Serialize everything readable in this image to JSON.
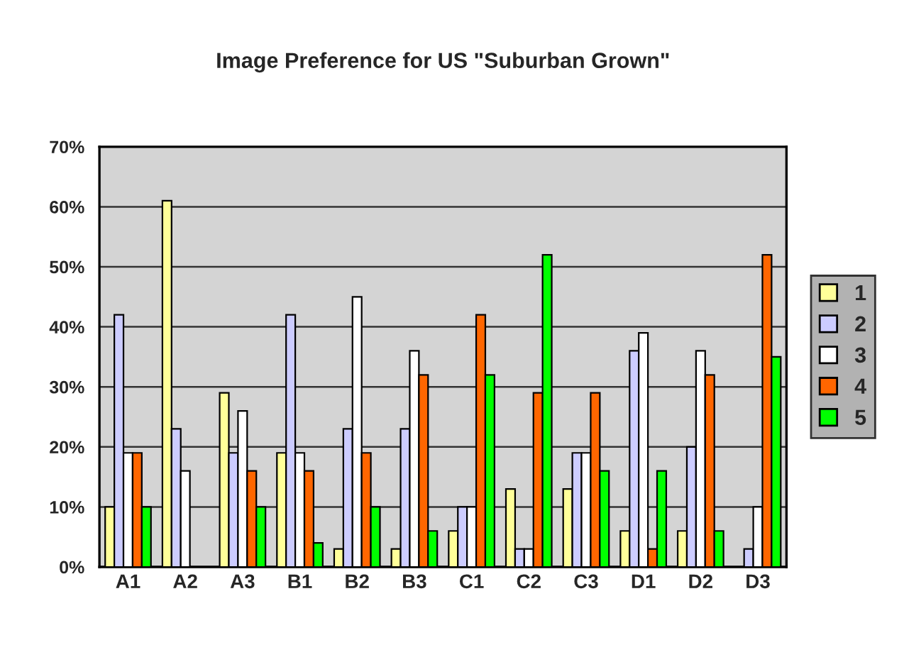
{
  "chart_data": {
    "type": "bar",
    "title": "Image Preference for US \"Suburban Grown\"",
    "categories": [
      "A1",
      "A2",
      "A3",
      "B1",
      "B2",
      "B3",
      "C1",
      "C2",
      "C3",
      "D1",
      "D2",
      "D3"
    ],
    "series": [
      {
        "name": "1",
        "color": "#ffff99",
        "values": [
          10,
          61,
          29,
          19,
          3,
          3,
          6,
          13,
          13,
          6,
          6,
          0
        ]
      },
      {
        "name": "2",
        "color": "#ccccff",
        "values": [
          42,
          23,
          19,
          42,
          23,
          23,
          10,
          3,
          19,
          36,
          20,
          3
        ]
      },
      {
        "name": "3",
        "color": "#ffffff",
        "values": [
          19,
          16,
          26,
          19,
          45,
          36,
          10,
          3,
          19,
          39,
          36,
          10
        ]
      },
      {
        "name": "4",
        "color": "#ff6600",
        "values": [
          19,
          0,
          16,
          16,
          19,
          32,
          42,
          29,
          29,
          3,
          32,
          52
        ]
      },
      {
        "name": "5",
        "color": "#00ff00",
        "values": [
          10,
          0,
          10,
          4,
          10,
          6,
          32,
          52,
          16,
          16,
          6,
          35
        ]
      }
    ],
    "ylim": [
      0,
      70
    ],
    "yticks": [
      {
        "value": 0,
        "label": "0%"
      },
      {
        "value": 10,
        "label": "10%"
      },
      {
        "value": 20,
        "label": "20%"
      },
      {
        "value": 30,
        "label": "30%"
      },
      {
        "value": 40,
        "label": "40%"
      },
      {
        "value": 50,
        "label": "50%"
      },
      {
        "value": 60,
        "label": "60%"
      },
      {
        "value": 70,
        "label": "70%"
      }
    ],
    "grid": "y",
    "legend": "right"
  }
}
